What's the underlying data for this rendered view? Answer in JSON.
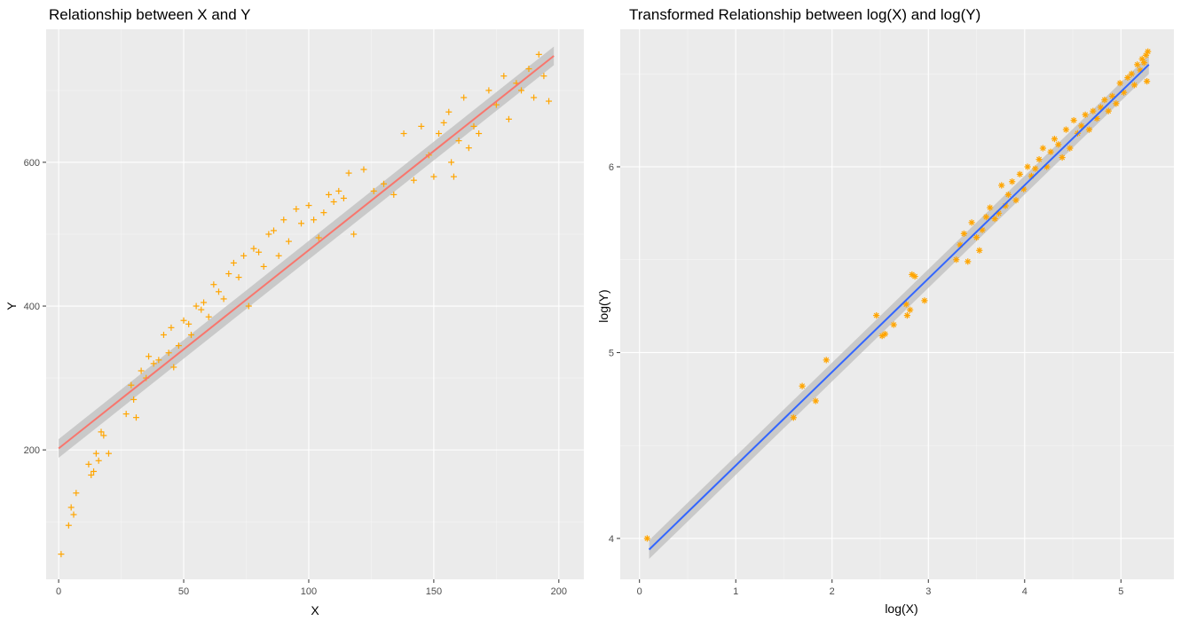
{
  "chart_data": [
    {
      "type": "scatter",
      "title": "Relationship between X and Y",
      "xlabel": "X",
      "ylabel": "Y",
      "xlim": [
        -5,
        210
      ],
      "ylim": [
        20,
        785
      ],
      "xticks": [
        0,
        50,
        100,
        150,
        200
      ],
      "yticks": [
        200,
        400,
        600
      ],
      "grid": true,
      "point_shape": "plus",
      "point_color": "#FFA500",
      "fit_line": {
        "x": [
          0,
          198
        ],
        "y": [
          202,
          748
        ],
        "color": "#F8766D",
        "band_color": "#BEBEBE"
      },
      "series": [
        {
          "x": [
            1,
            4,
            5,
            6,
            7,
            12,
            13,
            14,
            15,
            16,
            17,
            18,
            20,
            27,
            29,
            30,
            31,
            33,
            35,
            36,
            38,
            40,
            42,
            44,
            45,
            46,
            48,
            50,
            52,
            53,
            55,
            57,
            58,
            60,
            62,
            64,
            66,
            68,
            70,
            72,
            74,
            76,
            78,
            80,
            82,
            84,
            86,
            88,
            90,
            92,
            95,
            97,
            100,
            102,
            104,
            106,
            108,
            110,
            112,
            114,
            116,
            118,
            122,
            126,
            130,
            134,
            138,
            142,
            145,
            148,
            150,
            152,
            154,
            156,
            157,
            158,
            160,
            162,
            164,
            166,
            168,
            172,
            175,
            178,
            180,
            183,
            185,
            188,
            190,
            192,
            194,
            196
          ],
          "y": [
            55,
            95,
            120,
            110,
            140,
            180,
            165,
            170,
            195,
            185,
            225,
            220,
            195,
            250,
            290,
            270,
            245,
            310,
            300,
            330,
            320,
            325,
            360,
            335,
            370,
            315,
            345,
            380,
            375,
            360,
            400,
            395,
            405,
            385,
            430,
            420,
            410,
            445,
            460,
            440,
            470,
            400,
            480,
            475,
            455,
            500,
            505,
            470,
            520,
            490,
            535,
            515,
            540,
            520,
            495,
            530,
            555,
            545,
            560,
            550,
            585,
            500,
            590,
            560,
            570,
            555,
            640,
            575,
            650,
            610,
            580,
            640,
            655,
            670,
            600,
            580,
            630,
            690,
            620,
            650,
            640,
            700,
            680,
            720,
            660,
            710,
            700,
            730,
            690,
            750,
            720,
            685
          ]
        }
      ]
    },
    {
      "type": "scatter",
      "title": "Transformed Relationship between log(X) and log(Y)",
      "xlabel": "log(X)",
      "ylabel": "log(Y)",
      "xlim": [
        -0.2,
        5.55
      ],
      "ylim": [
        3.78,
        6.74
      ],
      "xticks": [
        0,
        1,
        2,
        3,
        4,
        5
      ],
      "yticks": [
        4,
        5,
        6
      ],
      "grid": true,
      "point_shape": "star",
      "point_color": "#FFA500",
      "fit_line": {
        "x": [
          0.1,
          5.29
        ],
        "y": [
          3.94,
          6.55
        ],
        "color": "#3366FF",
        "band_color": "#BEBEBE"
      },
      "series": [
        {
          "x": [
            0.08,
            1.6,
            1.69,
            1.83,
            1.94,
            2.46,
            2.52,
            2.55,
            2.64,
            2.77,
            2.78,
            2.81,
            2.83,
            2.86,
            2.96,
            3.29,
            3.33,
            3.37,
            3.41,
            3.45,
            3.5,
            3.53,
            3.56,
            3.6,
            3.64,
            3.69,
            3.73,
            3.76,
            3.8,
            3.83,
            3.87,
            3.91,
            3.95,
            3.99,
            4.03,
            4.07,
            4.11,
            4.15,
            4.19,
            4.23,
            4.27,
            4.31,
            4.35,
            4.39,
            4.43,
            4.47,
            4.51,
            4.55,
            4.59,
            4.63,
            4.67,
            4.71,
            4.75,
            4.79,
            4.83,
            4.87,
            4.91,
            4.95,
            4.99,
            5.03,
            5.07,
            5.11,
            5.14,
            5.17,
            5.2,
            5.22,
            5.24,
            5.26,
            5.27,
            5.28
          ],
          "y": [
            4.0,
            4.65,
            4.82,
            4.74,
            4.96,
            5.2,
            5.09,
            5.1,
            5.15,
            5.26,
            5.2,
            5.23,
            5.42,
            5.41,
            5.28,
            5.5,
            5.58,
            5.64,
            5.49,
            5.7,
            5.62,
            5.55,
            5.66,
            5.73,
            5.78,
            5.72,
            5.75,
            5.9,
            5.79,
            5.85,
            5.92,
            5.82,
            5.96,
            5.88,
            6.0,
            5.95,
            5.99,
            6.04,
            6.1,
            6.0,
            6.08,
            6.15,
            6.12,
            6.05,
            6.2,
            6.1,
            6.25,
            6.18,
            6.22,
            6.28,
            6.2,
            6.3,
            6.26,
            6.32,
            6.36,
            6.3,
            6.38,
            6.34,
            6.45,
            6.4,
            6.48,
            6.5,
            6.44,
            6.55,
            6.52,
            6.58,
            6.56,
            6.6,
            6.46,
            6.62
          ]
        }
      ]
    }
  ]
}
